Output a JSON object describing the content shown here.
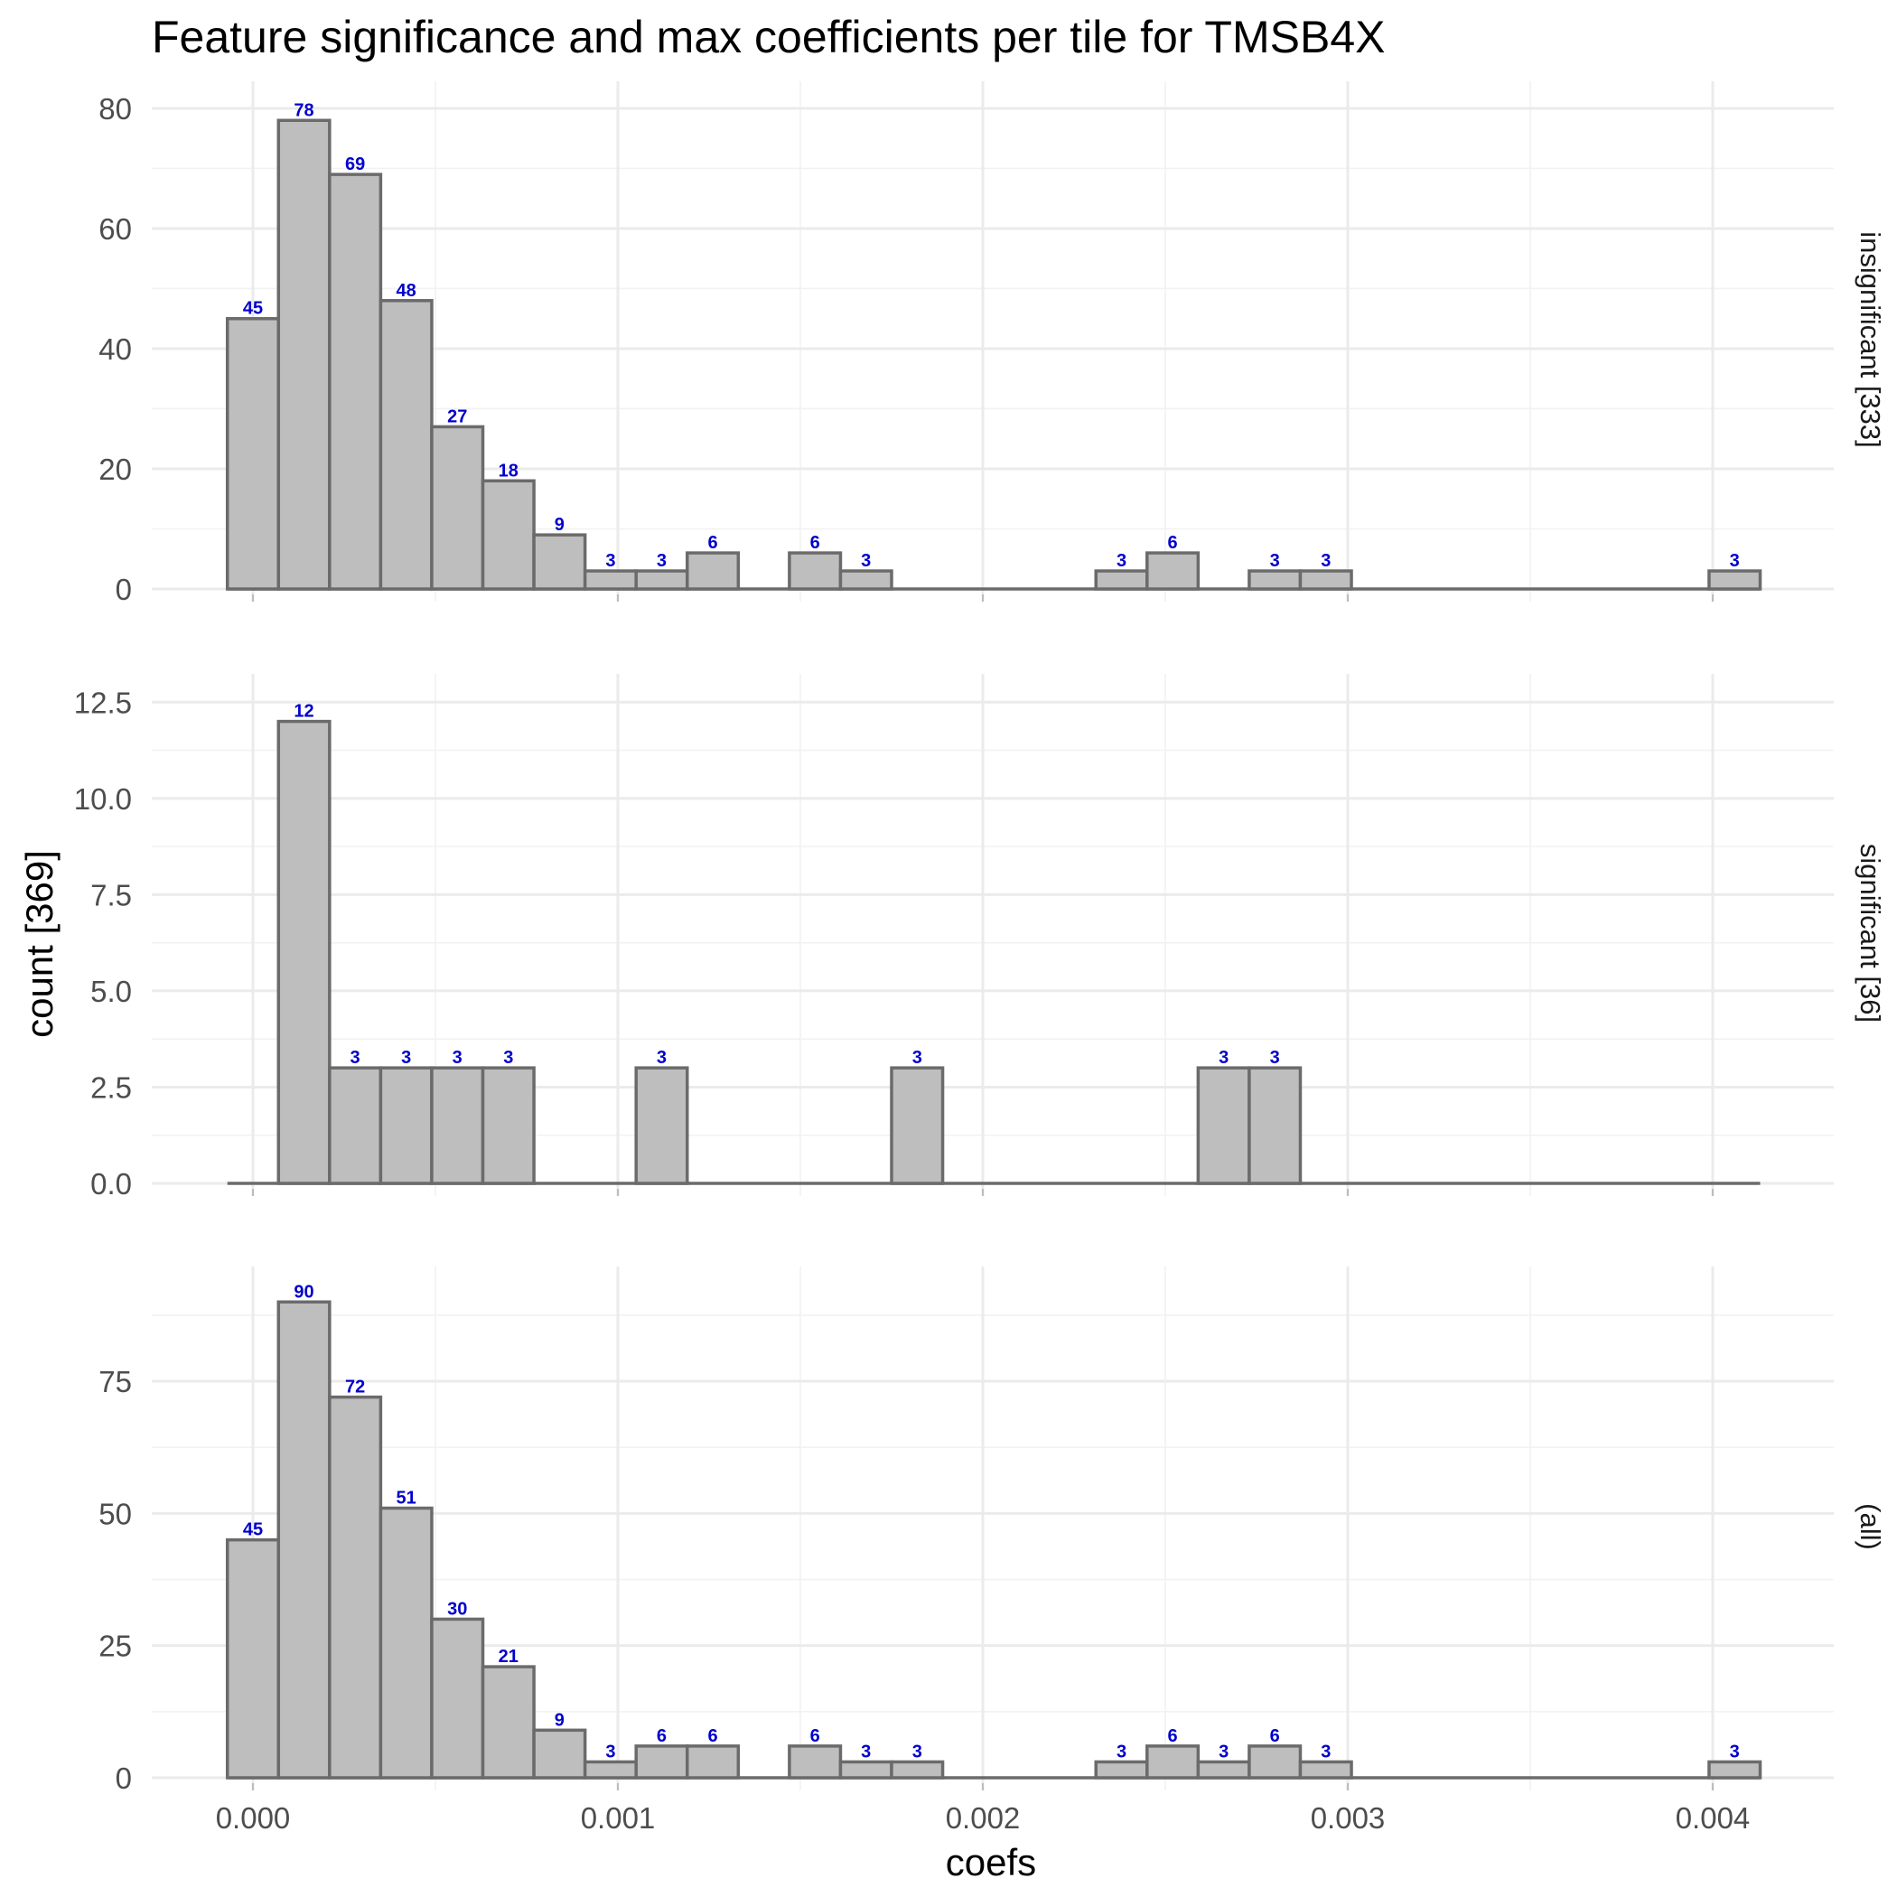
{
  "chart_data": {
    "type": "bar",
    "subtype": "histogram-facetted",
    "title": "Feature significance and max coefficients per tile for TMSB4X",
    "xlabel": "coefs",
    "ylabel": "count [369]",
    "x_ticks": [
      0,
      0.001,
      0.002,
      0.003,
      0.004
    ],
    "x_tick_labels": [
      "0.000",
      "0.001",
      "0.002",
      "0.003",
      "0.004"
    ],
    "xlim": [
      -0.0004,
      0.0043
    ],
    "bin_width": 0.00014,
    "bin_start": -7e-05,
    "bar_fill": "#bebebe",
    "bar_outline": "#6b6b6b",
    "label_color": "#0000cc",
    "grid": true,
    "bin_centers": [
      0.0,
      0.00014,
      0.00028,
      0.00042,
      0.00056,
      0.0007,
      0.00084,
      0.00098,
      0.00112,
      0.00126,
      0.0014,
      0.00154,
      0.00168,
      0.00182,
      0.00196,
      0.0021,
      0.00224,
      0.00238,
      0.00252,
      0.00266,
      0.0028,
      0.00294,
      0.00308,
      0.00322,
      0.00336,
      0.0035,
      0.00364,
      0.00378,
      0.00392,
      0.00406
    ],
    "panels": [
      {
        "strip": "insignificant [333]",
        "ylim": [
          0,
          83
        ],
        "y_ticks": [
          0,
          20,
          40,
          60,
          80
        ],
        "y_tick_labels": [
          "0",
          "20",
          "40",
          "60",
          "80"
        ],
        "values": [
          45,
          78,
          69,
          48,
          27,
          18,
          9,
          3,
          3,
          6,
          0,
          6,
          3,
          0,
          0,
          0,
          0,
          3,
          6,
          0,
          3,
          3,
          0,
          0,
          0,
          0,
          0,
          0,
          0,
          3
        ]
      },
      {
        "strip": "significant [36]",
        "ylim": [
          0,
          13
        ],
        "y_ticks": [
          0,
          2.5,
          5,
          7.5,
          10,
          12.5
        ],
        "y_tick_labels": [
          "0.0",
          "2.5",
          "5.0",
          "7.5",
          "10.0",
          "12.5"
        ],
        "values": [
          0,
          12,
          3,
          3,
          3,
          3,
          0,
          0,
          3,
          0,
          0,
          0,
          0,
          3,
          0,
          0,
          0,
          0,
          0,
          3,
          3,
          0,
          0,
          0,
          0,
          0,
          0,
          0,
          0,
          0
        ]
      },
      {
        "strip": "(all)",
        "ylim": [
          0,
          95
        ],
        "y_ticks": [
          0,
          25,
          50,
          75
        ],
        "y_tick_labels": [
          "0",
          "25",
          "50",
          "75"
        ],
        "values": [
          45,
          90,
          72,
          51,
          30,
          21,
          9,
          3,
          6,
          6,
          0,
          6,
          3,
          3,
          0,
          0,
          0,
          3,
          6,
          3,
          6,
          3,
          0,
          0,
          0,
          0,
          0,
          0,
          0,
          3
        ]
      }
    ]
  }
}
